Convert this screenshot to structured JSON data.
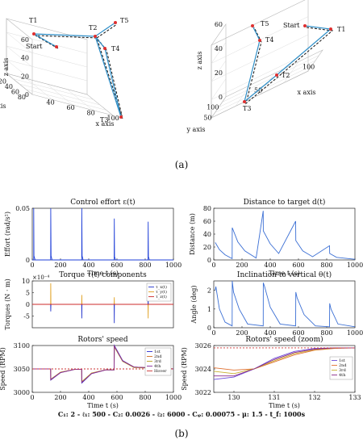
{
  "caption_a": "(a)",
  "caption_b": "(b)",
  "params_line": "C₁: 2 - ℓ₁: 500 - C₂: 0.0026 - ℓ₂: 6000 - Cᵩ: 0.00075 - μ: 1.5 - t_f: 1000s",
  "chart_data": [
    {
      "type": "line3d",
      "axes": {
        "xlabel": "x axis",
        "ylabel": "y axis",
        "zlabel": "z axis"
      },
      "z_ticks": [
        "0",
        "20",
        "40",
        "60"
      ],
      "y_ticks": [
        "20",
        "40",
        "60",
        "80"
      ],
      "x_ticks": [
        "40",
        "60",
        "80",
        "100"
      ],
      "points": [
        {
          "label": "T1",
          "value": [
            42,
            60,
            54
          ]
        },
        {
          "label": "Start",
          "value": [
            50,
            50,
            47
          ]
        },
        {
          "label": "T2",
          "value": [
            68,
            58,
            50
          ]
        },
        {
          "label": "T4",
          "value": [
            70,
            56,
            42
          ]
        },
        {
          "label": "T5",
          "value": [
            76,
            60,
            63
          ]
        },
        {
          "label": "T3",
          "value": [
            90,
            40,
            8
          ]
        }
      ]
    },
    {
      "type": "line3d",
      "axes": {
        "xlabel": "x axis",
        "ylabel": "y axis",
        "zlabel": "z axis"
      },
      "z_ticks": [
        "0",
        "20",
        "40",
        "60"
      ],
      "y_ticks": [
        "50",
        "100"
      ],
      "x_ticks": [
        "50",
        "100"
      ],
      "points": [
        {
          "label": "Start",
          "value": [
            60,
            70,
            55
          ]
        },
        {
          "label": "T1",
          "value": [
            95,
            60,
            54
          ]
        },
        {
          "label": "T5",
          "value": [
            40,
            40,
            60
          ]
        },
        {
          "label": "T4",
          "value": [
            45,
            50,
            48
          ]
        },
        {
          "label": "T2",
          "value": [
            70,
            40,
            25
          ]
        },
        {
          "label": "T3",
          "value": [
            40,
            30,
            8
          ]
        }
      ]
    },
    {
      "type": "line",
      "title": "Control effort ε(t)",
      "xlabel": "Time t (s)",
      "ylabel": "Effort (rad/s²)",
      "xlim": [
        0,
        1000
      ],
      "ylim": [
        0,
        0.05
      ],
      "x_ticks": [
        "0",
        "200",
        "400",
        "600",
        "800",
        "1000"
      ],
      "y_ticks": [
        "0",
        "0.05"
      ],
      "series": [
        {
          "color": "#1f3fd8",
          "x": [
            0,
            10,
            10.5,
            12,
            20,
            130,
            131,
            133,
            140,
            350,
            351,
            353,
            360,
            580,
            581,
            583,
            590,
            820,
            821,
            823,
            830,
            1000
          ],
          "y": [
            0,
            0,
            0.05,
            0.004,
            0,
            0,
            0.05,
            0.004,
            0,
            0,
            0.05,
            0.004,
            0,
            0,
            0.04,
            0.003,
            0,
            0,
            0.037,
            0.003,
            0,
            0
          ]
        }
      ]
    },
    {
      "type": "line",
      "title": "Distance to target d(t)",
      "xlabel": "Time t (s)",
      "ylabel": "Distance (m)",
      "xlim": [
        0,
        1000
      ],
      "ylim": [
        0,
        80
      ],
      "x_ticks": [
        "0",
        "200",
        "400",
        "600",
        "800",
        "1000"
      ],
      "y_ticks": [
        "0",
        "20",
        "40",
        "60",
        "80"
      ],
      "series": [
        {
          "color": "#3b6fd4",
          "x": [
            10,
            40,
            80,
            130,
            131,
            170,
            220,
            300,
            350,
            351,
            400,
            460,
            580,
            581,
            630,
            700,
            820,
            821,
            870,
            1000
          ],
          "y": [
            27,
            16,
            8,
            2,
            50,
            28,
            14,
            3,
            76,
            45,
            25,
            10,
            60,
            30,
            14,
            5,
            22,
            10,
            4,
            1
          ]
        }
      ]
    },
    {
      "type": "line",
      "title": "Torque τ(t) components",
      "xlabel": "",
      "ylabel": "Torques (N · m)",
      "exponent_label": "×10⁻⁴",
      "xlim": [
        0,
        1000
      ],
      "ylim": [
        -10,
        10
      ],
      "x_ticks": [],
      "y_ticks": [
        "-5",
        "0",
        "5",
        "10"
      ],
      "legend": [
        "τ_x(t)",
        "τ_y(t)",
        "τ_z(t)"
      ],
      "legend_position": "top-right",
      "series": [
        {
          "name": "τ_x(t)",
          "color": "#2233cc",
          "x": [
            0,
            130,
            131,
            132,
            350,
            351,
            352,
            580,
            581,
            582,
            820,
            821,
            822,
            1000
          ],
          "y": [
            0,
            0,
            -3,
            0,
            0,
            -6,
            0,
            0,
            -8,
            0,
            0,
            4,
            0,
            0
          ]
        },
        {
          "name": "τ_y(t)",
          "color": "#e0a020",
          "x": [
            0,
            130,
            131,
            132,
            350,
            351,
            352,
            580,
            581,
            582,
            820,
            821,
            822,
            1000
          ],
          "y": [
            0,
            0,
            9,
            0,
            0,
            4,
            0,
            0,
            3,
            0,
            0,
            -6,
            0,
            0
          ]
        },
        {
          "name": "τ_z(t)",
          "color": "#cc2a2a",
          "x": [
            0,
            1000
          ],
          "y": [
            0,
            0
          ]
        }
      ]
    },
    {
      "type": "line",
      "title": "Inclination to vertical θ(t)",
      "xlabel": "",
      "ylabel": "Angle (deg)",
      "xlim": [
        0,
        1000
      ],
      "ylim": [
        0,
        2.5
      ],
      "x_ticks": [
        "0",
        "200",
        "400",
        "600",
        "800",
        "1000"
      ],
      "y_ticks": [
        "0",
        "1",
        "2"
      ],
      "series": [
        {
          "color": "#3b6fd4",
          "x": [
            10,
            15,
            40,
            80,
            130,
            131,
            140,
            180,
            240,
            350,
            351,
            360,
            400,
            470,
            580,
            581,
            590,
            640,
            720,
            820,
            821,
            830,
            880,
            1000
          ],
          "y": [
            2.0,
            2.2,
            1.0,
            0.3,
            0.1,
            2.5,
            1.9,
            1.0,
            0.2,
            0.1,
            2.4,
            2.2,
            1.1,
            0.2,
            0.1,
            1.9,
            1.6,
            0.7,
            0.1,
            0.05,
            1.3,
            1.0,
            0.2,
            0.05
          ]
        }
      ]
    },
    {
      "type": "line",
      "title": "Rotors' speed",
      "xlabel": "Time t (s)",
      "ylabel": "Speed (RPM)",
      "xlim": [
        0,
        1000
      ],
      "ylim": [
        3000,
        3100
      ],
      "x_ticks": [
        "0",
        "200",
        "400",
        "600",
        "800",
        "1000"
      ],
      "y_ticks": [
        "3000",
        "3050",
        "3100"
      ],
      "legend": [
        "1st",
        "2nd",
        "3rd",
        "4th",
        "Hover"
      ],
      "legend_position": "top-right",
      "series": [
        {
          "name": "1st",
          "color": "#2a2ad0",
          "x": [
            0,
            130,
            131,
            200,
            300,
            350,
            351,
            420,
            520,
            580,
            581,
            640,
            720,
            1000
          ],
          "y": [
            3050,
            3050,
            3026,
            3042,
            3049,
            3049,
            3020,
            3040,
            3048,
            3048,
            3100,
            3068,
            3054,
            3050
          ]
        },
        {
          "name": "2nd",
          "color": "#d06a20",
          "x": [
            0,
            130,
            131,
            200,
            300,
            350,
            351,
            420,
            520,
            580,
            581,
            640,
            720,
            1000
          ],
          "y": [
            3050,
            3050,
            3027,
            3043,
            3049,
            3049,
            3022,
            3041,
            3048,
            3048,
            3098,
            3067,
            3054,
            3050
          ]
        },
        {
          "name": "3rd",
          "color": "#b8a020",
          "x": [
            0,
            130,
            131,
            200,
            300,
            350,
            351,
            420,
            520,
            580,
            581,
            640,
            720,
            1000
          ],
          "y": [
            3050,
            3050,
            3028,
            3043,
            3049,
            3049,
            3023,
            3041,
            3048,
            3048,
            3097,
            3066,
            3053,
            3050
          ]
        },
        {
          "name": "4th",
          "color": "#8a2a9a",
          "x": [
            0,
            130,
            131,
            200,
            300,
            350,
            351,
            420,
            520,
            580,
            581,
            640,
            720,
            1000
          ],
          "y": [
            3050,
            3050,
            3027,
            3042,
            3049,
            3049,
            3021,
            3040,
            3048,
            3048,
            3099,
            3067,
            3054,
            3050
          ]
        },
        {
          "name": "Hover",
          "color": "#cc3333",
          "dashed": true,
          "x": [
            0,
            1000
          ],
          "y": [
            3050,
            3050
          ]
        }
      ]
    },
    {
      "type": "line",
      "title": "Rotors' speed (zoom)",
      "xlabel": "Time t (s)",
      "ylabel": "Speed (RPM)",
      "xlim": [
        129.5,
        133
      ],
      "ylim": [
        3022,
        3026
      ],
      "x_ticks": [
        "130",
        "131",
        "132",
        "133"
      ],
      "y_ticks": [
        "3022",
        "3024",
        "3026"
      ],
      "legend": [
        "1st",
        "2nd",
        "3rd",
        "4th"
      ],
      "legend_position": "right",
      "series": [
        {
          "name": "1st",
          "color": "#6a4ad8",
          "x": [
            129.5,
            130,
            130.5,
            131,
            131.5,
            132,
            132.5,
            133
          ],
          "y": [
            3023.1,
            3023.3,
            3024.0,
            3024.9,
            3025.5,
            3025.75,
            3025.8,
            3025.8
          ]
        },
        {
          "name": "2nd",
          "color": "#e07030",
          "x": [
            129.5,
            130,
            130.5,
            131,
            131.5,
            132,
            132.5,
            133
          ],
          "y": [
            3024.1,
            3023.9,
            3024.0,
            3024.6,
            3025.2,
            3025.6,
            3025.75,
            3025.8
          ]
        },
        {
          "name": "3rd",
          "color": "#c8b030",
          "x": [
            129.5,
            130,
            130.5,
            131,
            131.5,
            132,
            132.5,
            133
          ],
          "y": [
            3023.8,
            3023.6,
            3024.0,
            3024.7,
            3025.3,
            3025.65,
            3025.78,
            3025.8
          ]
        },
        {
          "name": "4th",
          "color": "#8a2a8a",
          "x": [
            129.5,
            130,
            130.5,
            131,
            131.5,
            132,
            132.5,
            133
          ],
          "y": [
            3023.4,
            3023.4,
            3024.0,
            3024.8,
            3025.4,
            3025.7,
            3025.8,
            3025.8
          ]
        },
        {
          "name": "hover",
          "color": "#cc3333",
          "dashed": true,
          "x": [
            129.5,
            133
          ],
          "y": [
            3025.8,
            3025.8
          ]
        }
      ]
    }
  ]
}
